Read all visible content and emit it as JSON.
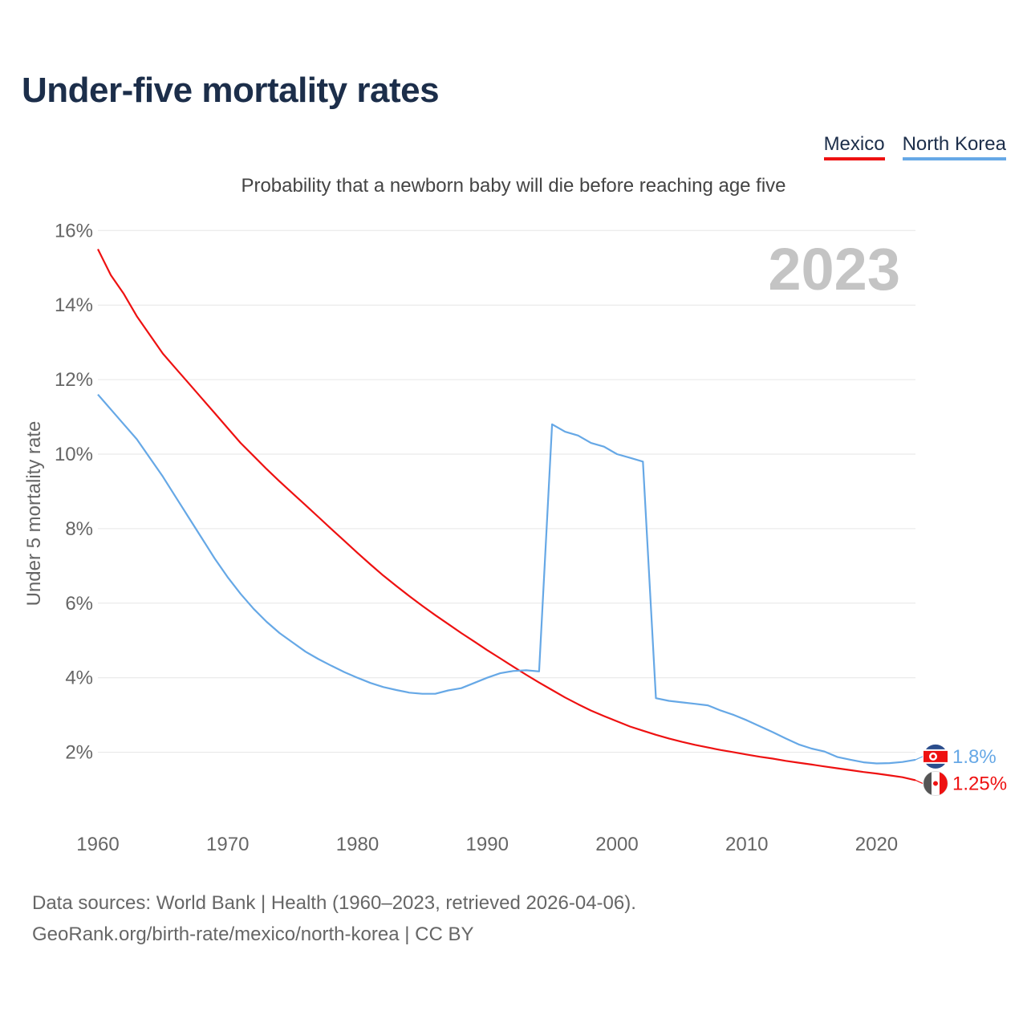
{
  "title": "Under-five mortality rates",
  "subtitle": "Probability that a newborn baby will die before reaching age five",
  "year_label": "2023",
  "legend": [
    {
      "label": "Mexico",
      "color": "#ee1111"
    },
    {
      "label": "North Korea",
      "color": "#66a8e6"
    }
  ],
  "end_labels": {
    "mexico": "1.25%",
    "north_korea": "1.8%"
  },
  "footer": {
    "line1": "Data sources: World Bank | Health (1960–2023, retrieved 2026-04-06).",
    "line2": "GeoRank.org/birth-rate/mexico/north-korea | CC BY"
  },
  "chart_data": {
    "type": "line",
    "title": "Under-five mortality rates",
    "ylabel": "Under 5 mortality rate",
    "xlabel": "",
    "xlim": [
      1960,
      2023
    ],
    "ylim": [
      0,
      16
    ],
    "yticks": [
      2,
      4,
      6,
      8,
      10,
      12,
      14,
      16
    ],
    "ytick_labels": [
      "2%",
      "4%",
      "6%",
      "8%",
      "10%",
      "12%",
      "14%",
      "16%"
    ],
    "xticks": [
      1960,
      1970,
      1980,
      1990,
      2000,
      2010,
      2020
    ],
    "xtick_labels": [
      "1960",
      "1970",
      "1980",
      "1990",
      "2000",
      "2010",
      "2020"
    ],
    "grid": true,
    "legend_position": "top-right",
    "series": [
      {
        "name": "Mexico",
        "color": "#ee1111",
        "x": [
          1960,
          1961,
          1962,
          1963,
          1964,
          1965,
          1966,
          1967,
          1968,
          1969,
          1970,
          1971,
          1972,
          1973,
          1974,
          1975,
          1976,
          1977,
          1978,
          1979,
          1980,
          1981,
          1982,
          1983,
          1984,
          1985,
          1986,
          1987,
          1988,
          1989,
          1990,
          1991,
          1992,
          1993,
          1994,
          1995,
          1996,
          1997,
          1998,
          1999,
          2000,
          2001,
          2002,
          2003,
          2004,
          2005,
          2006,
          2007,
          2008,
          2009,
          2010,
          2011,
          2012,
          2013,
          2014,
          2015,
          2016,
          2017,
          2018,
          2019,
          2020,
          2021,
          2022,
          2023
        ],
        "values": [
          15.5,
          14.8,
          14.3,
          13.7,
          13.2,
          12.7,
          12.3,
          11.9,
          11.5,
          11.1,
          10.7,
          10.3,
          9.95,
          9.6,
          9.27,
          8.95,
          8.63,
          8.31,
          7.99,
          7.67,
          7.35,
          7.04,
          6.74,
          6.46,
          6.19,
          5.93,
          5.68,
          5.44,
          5.2,
          4.97,
          4.74,
          4.52,
          4.3,
          4.08,
          3.87,
          3.67,
          3.47,
          3.29,
          3.12,
          2.97,
          2.83,
          2.69,
          2.58,
          2.47,
          2.37,
          2.28,
          2.2,
          2.13,
          2.06,
          2.0,
          1.94,
          1.88,
          1.83,
          1.77,
          1.72,
          1.67,
          1.62,
          1.57,
          1.52,
          1.47,
          1.43,
          1.38,
          1.33,
          1.25
        ]
      },
      {
        "name": "North Korea",
        "color": "#66a8e6",
        "x": [
          1960,
          1961,
          1962,
          1963,
          1964,
          1965,
          1966,
          1967,
          1968,
          1969,
          1970,
          1971,
          1972,
          1973,
          1974,
          1975,
          1976,
          1977,
          1978,
          1979,
          1980,
          1981,
          1982,
          1983,
          1984,
          1985,
          1986,
          1987,
          1988,
          1989,
          1990,
          1991,
          1992,
          1993,
          1994,
          1995,
          1996,
          1997,
          1998,
          1999,
          2000,
          2001,
          2002,
          2003,
          2004,
          2005,
          2006,
          2007,
          2008,
          2009,
          2010,
          2011,
          2012,
          2013,
          2014,
          2015,
          2016,
          2017,
          2018,
          2019,
          2020,
          2021,
          2022,
          2023
        ],
        "values": [
          11.6,
          11.2,
          10.8,
          10.4,
          9.9,
          9.4,
          8.85,
          8.3,
          7.75,
          7.2,
          6.7,
          6.25,
          5.85,
          5.5,
          5.2,
          4.95,
          4.7,
          4.5,
          4.32,
          4.15,
          4.0,
          3.86,
          3.75,
          3.67,
          3.6,
          3.57,
          3.57,
          3.66,
          3.72,
          3.86,
          4.0,
          4.12,
          4.18,
          4.2,
          4.17,
          10.8,
          10.6,
          10.5,
          10.3,
          10.2,
          10.0,
          9.9,
          9.8,
          3.45,
          3.38,
          3.34,
          3.3,
          3.26,
          3.12,
          3.0,
          2.86,
          2.7,
          2.54,
          2.37,
          2.21,
          2.1,
          2.02,
          1.87,
          1.8,
          1.73,
          1.7,
          1.71,
          1.74,
          1.8
        ]
      }
    ]
  }
}
